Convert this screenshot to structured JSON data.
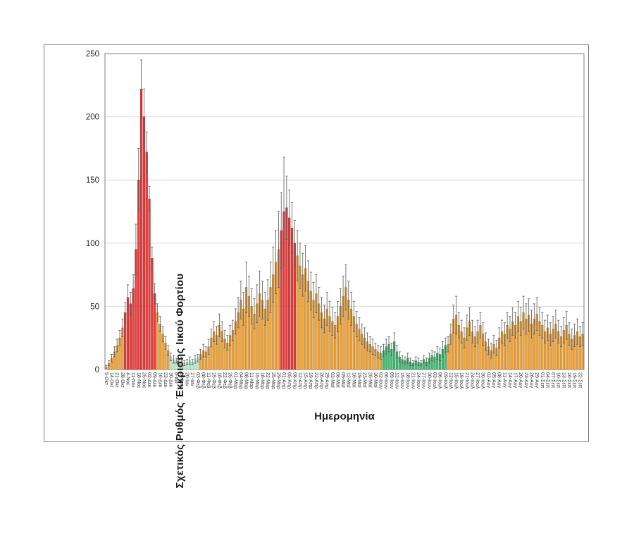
{
  "chart_data": {
    "type": "bar",
    "title": "",
    "xlabel": "Ημερομηνία",
    "ylabel": "Σχετικός Ρυθμός Έκκρισης Ιικού Φορτίου",
    "ylim": [
      0,
      250
    ],
    "yticks": [
      0,
      50,
      100,
      150,
      200,
      250
    ],
    "grid": "horizontal",
    "legend": "none",
    "label_every_n_bars": 2,
    "n_bars": 178,
    "categories": [
      "5-Οκτ",
      "14-Οκτ",
      "21-Οκτ",
      "28-Οκτ",
      "4-Νοε",
      "11-Νοε",
      "18-Νοε",
      "25-Νοε",
      "02-Δεκ",
      "09-Δεκ",
      "16-Δεκ",
      "23-Δεκ",
      "30-Δεκ",
      "6-Ιαν",
      "13-Ιαν",
      "20-Ιαν",
      "27-Ιαν",
      "03-Φεβ",
      "08-Φεβ",
      "11-Φεβ",
      "15-Φεβ",
      "18-Φεβ",
      "22-Φεβ",
      "25-Φεβ",
      "01-Μαρ",
      "04-Μαρ",
      "08-Μαρ",
      "11-Μαρ",
      "15-Μαρ",
      "18-Μαρ",
      "22-Μαρ",
      "25-Μαρ",
      "29-Μαρ",
      "01-Απρ",
      "05-Απρ",
      "08-Απρ",
      "12-Απρ",
      "15-Απρ",
      "19-Απρ",
      "22-Απρ",
      "26-Απρ",
      "29-Απρ",
      "03-Μαϊ",
      "06-Μαϊ",
      "09-Μαϊ",
      "12-Μαϊ",
      "16-Μαϊ",
      "19-Μαϊ",
      "23-Μαϊ",
      "26-Μαϊ",
      "30-Μαϊ",
      "02-Ιουν",
      "06-Ιουν",
      "09-Ιουν",
      "12-Ιουν",
      "15-Ιουν",
      "18-Ιουν",
      "21-Ιουν",
      "24-Ιουν",
      "27-Ιουν",
      "30-Ιουν",
      "03-Ιουλ",
      "06-Ιουλ",
      "09-Ιουλ",
      "12-Ιουλ",
      "15-Ιουλ",
      "18-Ιουλ",
      "21-Ιουλ",
      "24-Ιουλ",
      "27-Ιουλ",
      "30-Ιουλ",
      "02-Αυγ",
      "05-Αυγ",
      "08-Αυγ",
      "11-Αυγ",
      "14-Αυγ",
      "17-Αυγ",
      "20-Αυγ",
      "23-Αυγ",
      "26-Αυγ",
      "29-Αυγ",
      "01-Σεπ",
      "04-Σεπ",
      "07-Σεπ",
      "10-Σεπ",
      "13-Σεπ",
      "16-Σεπ",
      "19-Σεπ",
      "22-Σεπ"
    ],
    "values": [
      2,
      5,
      9,
      14,
      19,
      25,
      33,
      45,
      57,
      52,
      64,
      95,
      150,
      222,
      200,
      172,
      135,
      88,
      60,
      45,
      36,
      28,
      21,
      15,
      10,
      8,
      7,
      6,
      7,
      5,
      6,
      7,
      6,
      8,
      9,
      12,
      15,
      14,
      18,
      25,
      30,
      27,
      35,
      30,
      24,
      21,
      27,
      31,
      38,
      45,
      55,
      48,
      65,
      58,
      50,
      44,
      52,
      60,
      55,
      48,
      55,
      65,
      75,
      85,
      95,
      110,
      125,
      128,
      120,
      112,
      100,
      90,
      82,
      75,
      80,
      70,
      62,
      55,
      60,
      52,
      45,
      40,
      48,
      42,
      38,
      35,
      42,
      50,
      58,
      65,
      55,
      48,
      42,
      36,
      32,
      28,
      25,
      22,
      20,
      18,
      16,
      14,
      13,
      15,
      18,
      20,
      16,
      22,
      14,
      10,
      8,
      7,
      9,
      6,
      5,
      7,
      6,
      5,
      8,
      6,
      9,
      11,
      10,
      13,
      12,
      16,
      19,
      20,
      28,
      40,
      43,
      35,
      30,
      25,
      33,
      38,
      30,
      26,
      30,
      35,
      28,
      22,
      18,
      15,
      20,
      17,
      25,
      30,
      28,
      35,
      32,
      38,
      35,
      42,
      38,
      45,
      40,
      43,
      36,
      40,
      44,
      38,
      35,
      30,
      33,
      28,
      32,
      36,
      30,
      26,
      31,
      35,
      28,
      24,
      27,
      30,
      26,
      28
    ],
    "errors": [
      1,
      2,
      3,
      4,
      5,
      6,
      7,
      8,
      10,
      9,
      11,
      20,
      25,
      23,
      22,
      16,
      10,
      9,
      8,
      7,
      6,
      6,
      5,
      4,
      3,
      3,
      2,
      2,
      3,
      2,
      2,
      3,
      2,
      3,
      3,
      4,
      5,
      4,
      6,
      7,
      8,
      7,
      9,
      8,
      7,
      6,
      8,
      8,
      10,
      12,
      15,
      13,
      20,
      16,
      14,
      12,
      15,
      18,
      15,
      13,
      16,
      20,
      22,
      25,
      30,
      30,
      43,
      25,
      22,
      20,
      18,
      20,
      18,
      17,
      18,
      16,
      15,
      14,
      15,
      13,
      12,
      11,
      13,
      12,
      11,
      10,
      12,
      14,
      16,
      18,
      15,
      13,
      12,
      10,
      9,
      8,
      8,
      7,
      6,
      6,
      5,
      5,
      5,
      5,
      6,
      6,
      5,
      7,
      5,
      4,
      3,
      3,
      4,
      3,
      2,
      3,
      3,
      2,
      3,
      3,
      4,
      4,
      4,
      5,
      5,
      6,
      6,
      6,
      8,
      11,
      15,
      10,
      9,
      8,
      10,
      11,
      9,
      8,
      9,
      10,
      9,
      7,
      6,
      6,
      7,
      6,
      8,
      9,
      9,
      10,
      10,
      11,
      10,
      12,
      11,
      13,
      12,
      13,
      11,
      12,
      13,
      11,
      10,
      9,
      10,
      9,
      10,
      11,
      9,
      8,
      10,
      11,
      9,
      8,
      9,
      10,
      8,
      9
    ],
    "bar_color_runs": [
      [
        "m",
        1
      ],
      [
        "o",
        6
      ],
      [
        "r",
        12
      ],
      [
        "o",
        5
      ],
      [
        "m",
        11
      ],
      [
        "o",
        30
      ],
      [
        "r",
        6
      ],
      [
        "o",
        32
      ],
      [
        "g",
        24
      ],
      [
        "o",
        51
      ]
    ],
    "color_key": {
      "o": {
        "name": "orange",
        "fill": "#F2A43C",
        "stroke": "#B27B23"
      },
      "r": {
        "name": "red",
        "fill": "#EB3B3B",
        "stroke": "#B02A2A"
      },
      "m": {
        "name": "pale-mint",
        "fill": "#C5E8D2",
        "stroke": "#8CC4A4"
      },
      "g": {
        "name": "green",
        "fill": "#46BA74",
        "stroke": "#2E9158"
      }
    },
    "error_bar_color": "#595959",
    "grid_color": "#D9D9D9",
    "axis_color": "#808080",
    "text_color": "#262626"
  }
}
